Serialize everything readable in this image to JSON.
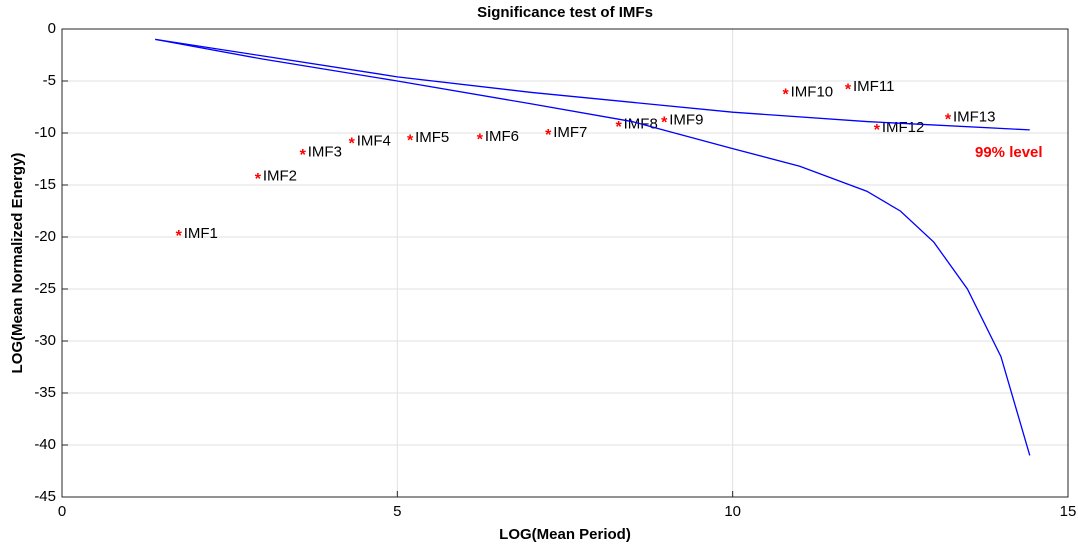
{
  "chart_data": {
    "type": "scatter",
    "title": "Significance test of IMFs",
    "x_label": "LOG(Mean Period)",
    "y_label": "LOG(Mean Normalized Energy)",
    "annotation": "99% level",
    "annotation_color": "#ff0000",
    "xlim": [
      0,
      15
    ],
    "xticks": [
      0,
      5,
      10,
      15
    ],
    "ylim": [
      -45,
      0
    ],
    "yticks": [
      0,
      -5,
      -10,
      -15,
      -20,
      -25,
      -30,
      -35,
      -40,
      -45
    ],
    "grid": true,
    "series": [
      {
        "type": "scatter",
        "color": "#ff0000",
        "x": [
          1.74,
          2.92,
          3.59,
          4.32,
          5.19,
          6.23,
          7.25,
          8.3,
          8.98,
          10.79,
          11.72,
          12.15,
          13.21
        ],
        "values": [
          -19.7,
          -14.2,
          -11.9,
          -10.8,
          -10.5,
          -10.4,
          -10.0,
          -9.2,
          -8.8,
          -6.1,
          -5.6,
          -9.5,
          -8.5
        ],
        "labels": [
          "IMF1",
          "IMF2",
          "IMF3",
          "IMF4",
          "IMF5",
          "IMF6",
          "IMF7",
          "IMF8",
          "IMF9",
          "IMF10",
          "IMF11",
          "IMF12",
          "IMF13"
        ]
      },
      {
        "type": "line",
        "color": "#0000ff",
        "x": [
          1.39,
          3,
          5,
          7,
          10,
          12,
          14.43
        ],
        "values": [
          -1.0,
          -2.6,
          -4.6,
          -6.1,
          -8.0,
          -8.9,
          -9.7
        ]
      },
      {
        "type": "line",
        "color": "#0000ff",
        "x": [
          1.39,
          3,
          5,
          7,
          8.5,
          10,
          11,
          12,
          12.5,
          13,
          13.5,
          14,
          14.43
        ],
        "values": [
          -1.0,
          -2.9,
          -5.0,
          -7.2,
          -8.9,
          -11.5,
          -13.2,
          -15.6,
          -17.5,
          -20.5,
          -25,
          -31.5,
          -41
        ]
      }
    ]
  }
}
